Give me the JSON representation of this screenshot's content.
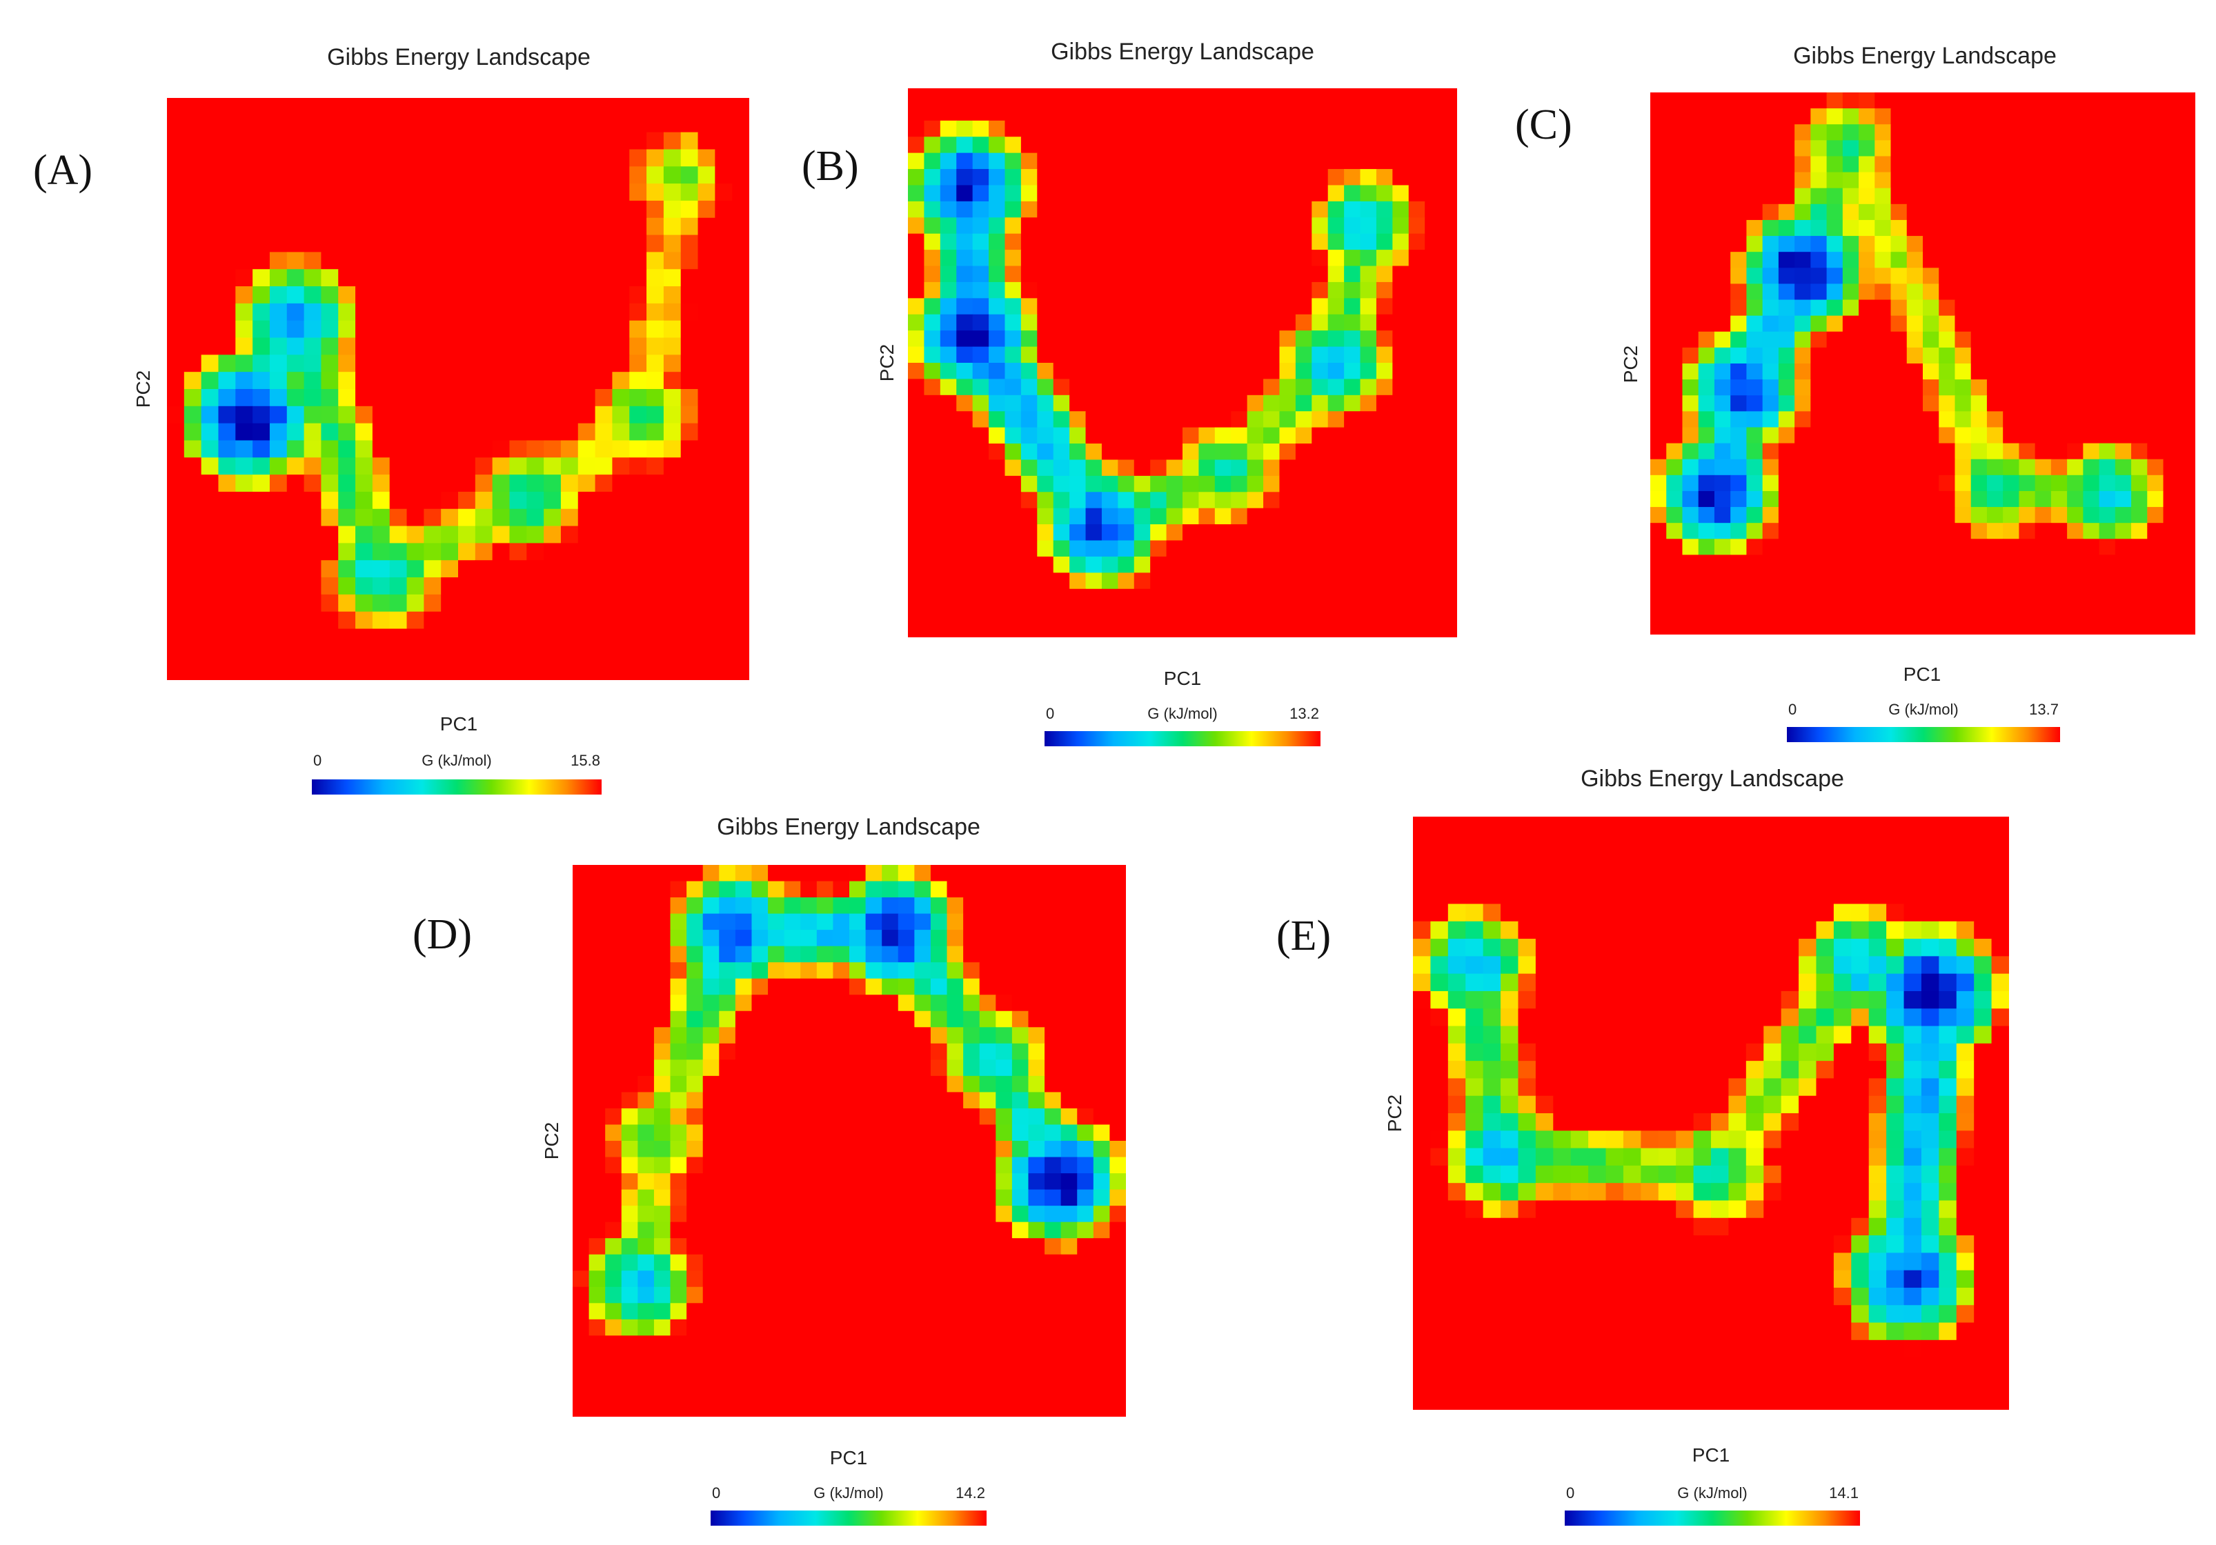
{
  "chart_data": [
    {
      "type": "heatmap",
      "panel_label": "(A)",
      "title": "Gibbs Energy Landscape",
      "xlabel": "PC1",
      "ylabel": "PC2",
      "colorbar": {
        "label": "G (kJ/mol)",
        "min": "0",
        "max": "15.8"
      },
      "colormap": [
        "#0000aa",
        "#0050ff",
        "#00b4ff",
        "#00e6e6",
        "#00e070",
        "#6ee000",
        "#ffff00",
        "#ff8c00",
        "#ff0000"
      ],
      "basins": [
        {
          "x": 0.14,
          "y": 0.55,
          "energy": 0.0
        },
        {
          "x": 0.22,
          "y": 0.38,
          "energy": 0.25
        },
        {
          "x": 0.37,
          "y": 0.82,
          "energy": 0.38
        },
        {
          "x": 0.62,
          "y": 0.69,
          "energy": 0.45
        },
        {
          "x": 0.82,
          "y": 0.55,
          "energy": 0.52
        },
        {
          "x": 0.88,
          "y": 0.14,
          "energy": 0.6
        }
      ]
    },
    {
      "type": "heatmap",
      "panel_label": "(B)",
      "title": "Gibbs Energy Landscape",
      "xlabel": "PC1",
      "ylabel": "PC2",
      "colorbar": {
        "label": "G (kJ/mol)",
        "min": "0",
        "max": "13.2"
      },
      "colormap": [
        "#0000aa",
        "#0050ff",
        "#00b4ff",
        "#00e6e6",
        "#00e070",
        "#6ee000",
        "#ffff00",
        "#ff8c00",
        "#ff0000"
      ],
      "basins": [
        {
          "x": 0.11,
          "y": 0.18,
          "energy": 0.05
        },
        {
          "x": 0.12,
          "y": 0.45,
          "energy": 0.0
        },
        {
          "x": 0.35,
          "y": 0.8,
          "energy": 0.1
        },
        {
          "x": 0.58,
          "y": 0.7,
          "energy": 0.45
        },
        {
          "x": 0.78,
          "y": 0.5,
          "energy": 0.3
        },
        {
          "x": 0.83,
          "y": 0.25,
          "energy": 0.35
        }
      ]
    },
    {
      "type": "heatmap",
      "panel_label": "(C)",
      "title": "Gibbs Energy Landscape",
      "xlabel": "PC1",
      "ylabel": "PC2",
      "colorbar": {
        "label": "G (kJ/mol)",
        "min": "0",
        "max": "13.7"
      },
      "colormap": [
        "#0000aa",
        "#0050ff",
        "#00b4ff",
        "#00e6e6",
        "#00e070",
        "#6ee000",
        "#ffff00",
        "#ff8c00",
        "#ff0000"
      ],
      "basins": [
        {
          "x": 0.12,
          "y": 0.74,
          "energy": 0.05
        },
        {
          "x": 0.17,
          "y": 0.55,
          "energy": 0.1
        },
        {
          "x": 0.28,
          "y": 0.33,
          "energy": 0.0
        },
        {
          "x": 0.36,
          "y": 0.1,
          "energy": 0.5
        },
        {
          "x": 0.64,
          "y": 0.73,
          "energy": 0.45
        },
        {
          "x": 0.84,
          "y": 0.74,
          "energy": 0.35
        }
      ]
    },
    {
      "type": "heatmap",
      "panel_label": "(D)",
      "title": "Gibbs Energy Landscape",
      "xlabel": "PC1",
      "ylabel": "PC2",
      "colorbar": {
        "label": "G (kJ/mol)",
        "min": "0",
        "max": "14.2"
      },
      "colormap": [
        "#0000aa",
        "#0050ff",
        "#00b4ff",
        "#00e6e6",
        "#00e070",
        "#6ee000",
        "#ffff00",
        "#ff8c00",
        "#ff0000"
      ],
      "basins": [
        {
          "x": 0.12,
          "y": 0.76,
          "energy": 0.3
        },
        {
          "x": 0.15,
          "y": 0.5,
          "energy": 0.55
        },
        {
          "x": 0.29,
          "y": 0.12,
          "energy": 0.1
        },
        {
          "x": 0.58,
          "y": 0.12,
          "energy": 0.05
        },
        {
          "x": 0.76,
          "y": 0.35,
          "energy": 0.4
        },
        {
          "x": 0.88,
          "y": 0.57,
          "energy": 0.0
        }
      ]
    },
    {
      "type": "heatmap",
      "panel_label": "(E)",
      "title": "Gibbs Energy Landscape",
      "xlabel": "PC1",
      "ylabel": "PC2",
      "colorbar": {
        "label": "G (kJ/mol)",
        "min": "0",
        "max": "14.1"
      },
      "colormap": [
        "#0000aa",
        "#0050ff",
        "#00b4ff",
        "#00e6e6",
        "#00e070",
        "#6ee000",
        "#ffff00",
        "#ff8c00",
        "#ff0000"
      ],
      "basins": [
        {
          "x": 0.1,
          "y": 0.25,
          "energy": 0.3
        },
        {
          "x": 0.15,
          "y": 0.57,
          "energy": 0.3
        },
        {
          "x": 0.51,
          "y": 0.6,
          "energy": 0.45
        },
        {
          "x": 0.75,
          "y": 0.25,
          "energy": 0.3
        },
        {
          "x": 0.87,
          "y": 0.3,
          "energy": 0.0
        },
        {
          "x": 0.83,
          "y": 0.78,
          "energy": 0.1
        }
      ]
    }
  ]
}
